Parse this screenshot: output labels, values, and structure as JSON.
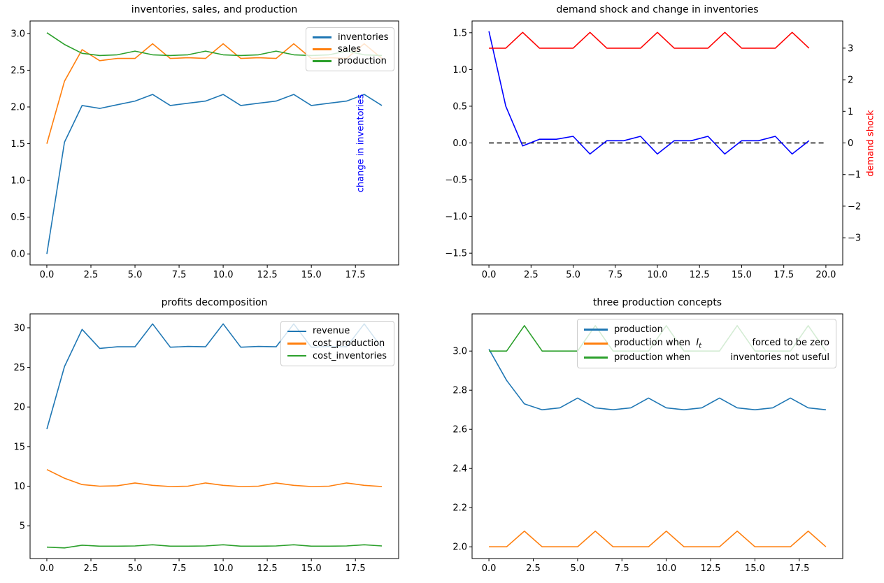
{
  "figure": {
    "background": "#ffffff",
    "grid": false
  },
  "chart_data": [
    {
      "type": "line",
      "title": "inventories, sales, and production",
      "xlabel": "",
      "ylabel": "",
      "xlim": [
        -0.95,
        19.95
      ],
      "ylim": [
        -0.15,
        3.17
      ],
      "legend_position": "upper right",
      "xticks": {
        "values": [
          0,
          2.5,
          5,
          7.5,
          10,
          12.5,
          15,
          17.5
        ],
        "labels": [
          "0.0",
          "2.5",
          "5.0",
          "7.5",
          "10.0",
          "12.5",
          "15.0",
          "17.5"
        ]
      },
      "yticks": {
        "values": [
          0,
          0.5,
          1,
          1.5,
          2,
          2.5,
          3
        ],
        "labels": [
          "0.0",
          "0.5",
          "1.0",
          "1.5",
          "2.0",
          "2.5",
          "3.0"
        ]
      },
      "series": [
        {
          "name": "inventories",
          "color": "#1f77b4",
          "values": [
            0.0,
            1.52,
            2.02,
            1.98,
            2.03,
            2.08,
            2.17,
            2.02,
            2.05,
            2.08,
            2.17,
            2.02,
            2.05,
            2.08,
            2.17,
            2.02,
            2.05,
            2.08,
            2.17,
            2.02
          ]
        },
        {
          "name": "sales",
          "color": "#ff7f0e",
          "values": [
            1.5,
            2.35,
            2.78,
            2.63,
            2.66,
            2.66,
            2.86,
            2.66,
            2.67,
            2.66,
            2.86,
            2.66,
            2.67,
            2.66,
            2.86,
            2.66,
            2.67,
            2.66,
            2.86,
            2.66
          ]
        },
        {
          "name": "production",
          "color": "#2ca02c",
          "values": [
            3.01,
            2.85,
            2.73,
            2.7,
            2.71,
            2.76,
            2.71,
            2.7,
            2.71,
            2.76,
            2.71,
            2.7,
            2.71,
            2.76,
            2.71,
            2.7,
            2.71,
            2.76,
            2.71,
            2.7
          ]
        }
      ],
      "legend": [
        {
          "label": "inventories",
          "color": "#1f77b4"
        },
        {
          "label": "sales",
          "color": "#ff7f0e"
        },
        {
          "label": "production",
          "color": "#2ca02c"
        }
      ]
    },
    {
      "type": "line",
      "title": "demand shock and change in inventories",
      "ylabel_left": {
        "text": "change in inventories",
        "color": "#0000ff"
      },
      "ylabel_right": {
        "text": "demand shock",
        "color": "#ff0000"
      },
      "xlim": [
        -1,
        21
      ],
      "ylim": [
        -1.66,
        1.66
      ],
      "y2lim": [
        -3.86,
        3.86
      ],
      "xticks": {
        "values": [
          0,
          2.5,
          5,
          7.5,
          10,
          12.5,
          15,
          17.5,
          20
        ],
        "labels": [
          "0.0",
          "2.5",
          "5.0",
          "7.5",
          "10.0",
          "12.5",
          "15.0",
          "17.5",
          "20.0"
        ]
      },
      "yticks": {
        "values": [
          -1.5,
          -1,
          -0.5,
          0,
          0.5,
          1,
          1.5
        ],
        "labels": [
          "−1.5",
          "−1.0",
          "−0.5",
          "0.0",
          "0.5",
          "1.0",
          "1.5"
        ]
      },
      "y2ticks": {
        "values": [
          -3,
          -2,
          -1,
          0,
          1,
          2,
          3
        ],
        "labels": [
          "−3",
          "−2",
          "−1",
          "0",
          "1",
          "2",
          "3"
        ]
      },
      "series": [
        {
          "name": "zero reference",
          "color": "#000000",
          "dash": true,
          "values": [
            0,
            0,
            0,
            0,
            0,
            0,
            0,
            0,
            0,
            0,
            0,
            0,
            0,
            0,
            0,
            0,
            0,
            0,
            0,
            0,
            0
          ]
        },
        {
          "name": "change in inventories",
          "color": "#0000ff",
          "values": [
            1.52,
            0.5,
            -0.04,
            0.05,
            0.05,
            0.09,
            -0.15,
            0.03,
            0.03,
            0.09,
            -0.15,
            0.03,
            0.03,
            0.09,
            -0.15,
            0.03,
            0.03,
            0.09,
            -0.15,
            0.03
          ]
        },
        {
          "name": "demand shock",
          "color": "#ff0000",
          "axis": "right",
          "values": [
            3,
            3,
            3.5,
            3,
            3,
            3,
            3.5,
            3,
            3,
            3,
            3.5,
            3,
            3,
            3,
            3.5,
            3,
            3,
            3,
            3.5,
            3
          ]
        }
      ]
    },
    {
      "type": "line",
      "title": "profits decomposition",
      "xlim": [
        -0.95,
        19.95
      ],
      "ylim": [
        0.86,
        31.76
      ],
      "legend_position": "upper right",
      "xticks": {
        "values": [
          0,
          2.5,
          5,
          7.5,
          10,
          12.5,
          15,
          17.5
        ],
        "labels": [
          "0.0",
          "2.5",
          "5.0",
          "7.5",
          "10.0",
          "12.5",
          "15.0",
          "17.5"
        ]
      },
      "yticks": {
        "values": [
          5,
          10,
          15,
          20,
          25,
          30
        ],
        "labels": [
          "5",
          "10",
          "15",
          "20",
          "25",
          "30"
        ]
      },
      "series": [
        {
          "name": "revenue",
          "color": "#1f77b4",
          "values": [
            17.2,
            25.1,
            29.8,
            27.4,
            27.6,
            27.6,
            30.5,
            27.55,
            27.65,
            27.6,
            30.5,
            27.55,
            27.65,
            27.6,
            30.5,
            27.55,
            27.65,
            27.6,
            30.5,
            27.5
          ]
        },
        {
          "name": "cost_production",
          "color": "#ff7f0e",
          "values": [
            12.1,
            11.0,
            10.2,
            10.0,
            10.05,
            10.4,
            10.1,
            9.95,
            10.0,
            10.4,
            10.1,
            9.95,
            10.0,
            10.4,
            10.1,
            9.95,
            10.0,
            10.4,
            10.1,
            9.95
          ]
        },
        {
          "name": "cost_inventories",
          "color": "#2ca02c",
          "values": [
            2.3,
            2.2,
            2.55,
            2.42,
            2.42,
            2.45,
            2.6,
            2.42,
            2.42,
            2.45,
            2.6,
            2.42,
            2.42,
            2.45,
            2.6,
            2.42,
            2.42,
            2.45,
            2.6,
            2.45
          ]
        }
      ],
      "legend": [
        {
          "label": "revenue",
          "color": "#1f77b4"
        },
        {
          "label": "cost_production",
          "color": "#ff7f0e"
        },
        {
          "label": "cost_inventories",
          "color": "#2ca02c"
        }
      ]
    },
    {
      "type": "line",
      "title": "three production concepts",
      "xlim": [
        -0.95,
        19.95
      ],
      "ylim": [
        1.94,
        3.19
      ],
      "legend_position": "upper center",
      "xticks": {
        "values": [
          0,
          2.5,
          5,
          7.5,
          10,
          12.5,
          15,
          17.5
        ],
        "labels": [
          "0.0",
          "2.5",
          "5.0",
          "7.5",
          "10.0",
          "12.5",
          "15.0",
          "17.5"
        ]
      },
      "yticks": {
        "values": [
          2.0,
          2.2,
          2.4,
          2.6,
          2.8,
          3.0
        ],
        "labels": [
          "2.0",
          "2.2",
          "2.4",
          "2.6",
          "2.8",
          "3.0"
        ]
      },
      "series": [
        {
          "name": "production",
          "color": "#1f77b4",
          "values": [
            3.01,
            2.85,
            2.73,
            2.7,
            2.71,
            2.76,
            2.71,
            2.7,
            2.71,
            2.76,
            2.71,
            2.7,
            2.71,
            2.76,
            2.71,
            2.7,
            2.71,
            2.76,
            2.71,
            2.7
          ]
        },
        {
          "name": "production when It forced to be zero",
          "color": "#ff7f0e",
          "values": [
            2.0,
            2.0,
            2.08,
            2.0,
            2.0,
            2.0,
            2.08,
            2.0,
            2.0,
            2.0,
            2.08,
            2.0,
            2.0,
            2.0,
            2.08,
            2.0,
            2.0,
            2.0,
            2.08,
            2.0
          ]
        },
        {
          "name": "production when inventories not useful",
          "color": "#2ca02c",
          "values": [
            3.0,
            3.0,
            3.13,
            3.0,
            3.0,
            3.0,
            3.13,
            3.0,
            3.0,
            3.0,
            3.13,
            3.0,
            3.0,
            3.0,
            3.13,
            3.0,
            3.0,
            3.0,
            3.13,
            3.0
          ]
        }
      ],
      "legend": [
        {
          "color": "#1f77b4",
          "left": "production",
          "right": ""
        },
        {
          "color": "#ff7f0e",
          "left": "production when",
          "math_base": "I",
          "math_sub": "t",
          "right": "forced to be zero"
        },
        {
          "color": "#2ca02c",
          "left": "production when",
          "right": "inventories not useful"
        }
      ]
    }
  ]
}
